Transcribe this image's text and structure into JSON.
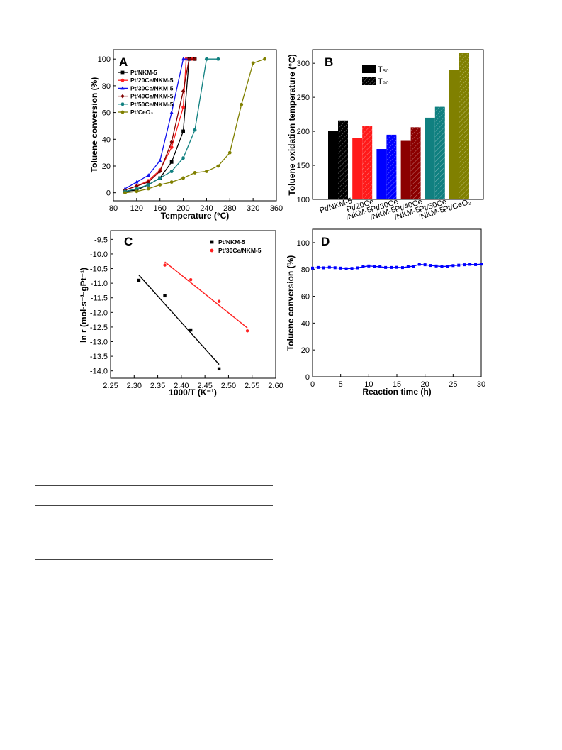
{
  "chart_data": [
    {
      "panel": "A",
      "type": "line",
      "xlabel": "Temperature (°C)",
      "ylabel": "Toluene conversion (%)",
      "xlim": [
        80,
        360
      ],
      "ylim": [
        -6,
        107
      ],
      "xticks": [
        "80",
        "120",
        "160",
        "200",
        "240",
        "280",
        "320",
        "360"
      ],
      "yticks": [
        "0",
        "20",
        "40",
        "60",
        "80",
        "100"
      ],
      "legend_position": "left",
      "series": [
        {
          "name": "Pt/NKM-5",
          "color": "#000000",
          "marker": "square",
          "x": [
            100,
            120,
            140,
            160,
            180,
            200,
            210,
            220
          ],
          "y": [
            1,
            2,
            6,
            11,
            23,
            46,
            100,
            100
          ]
        },
        {
          "name": "Pt/20Ce/NKM-5",
          "color": "#ff2020",
          "marker": "circle",
          "x": [
            100,
            120,
            140,
            160,
            180,
            200,
            205,
            215
          ],
          "y": [
            2,
            5,
            9,
            17,
            34,
            64,
            100,
            100
          ]
        },
        {
          "name": "Pt/30Ce/NKM-5",
          "color": "#1010ee",
          "marker": "triangle",
          "x": [
            100,
            120,
            140,
            160,
            180,
            200,
            210
          ],
          "y": [
            3,
            8,
            13,
            24,
            60,
            100,
            100
          ]
        },
        {
          "name": "Pt/40Ce/NKM-5",
          "color": "#800000",
          "marker": "diamond",
          "x": [
            100,
            120,
            140,
            160,
            180,
            200,
            210,
            220
          ],
          "y": [
            2,
            5,
            8,
            16,
            38,
            76,
            100,
            100
          ]
        },
        {
          "name": "Pt/50Ce/NKM-5",
          "color": "#108080",
          "marker": "hexagon",
          "x": [
            100,
            120,
            140,
            160,
            180,
            200,
            220,
            240,
            260
          ],
          "y": [
            1,
            3,
            6,
            11,
            16,
            26,
            47,
            100,
            100
          ]
        },
        {
          "name": "Pt/CeO₂",
          "color": "#808000",
          "marker": "circle",
          "x": [
            100,
            120,
            140,
            160,
            180,
            200,
            220,
            240,
            260,
            280,
            300,
            320,
            340
          ],
          "y": [
            0,
            1,
            3,
            6,
            8,
            11,
            15,
            16,
            20,
            30,
            66,
            97,
            100
          ]
        }
      ]
    },
    {
      "panel": "B",
      "type": "bar",
      "ylabel": "Toluene oxidation temperature (°C)",
      "ylim": [
        100,
        320
      ],
      "yticks": [
        "100",
        "150",
        "200",
        "250",
        "300"
      ],
      "categories": [
        "Pt/NKM-5",
        "Pt/20Ce /NKM-5",
        "Pt/30Ce /NKM-5",
        "Pt/40Ce /NKM-5",
        "Pt/50Ce /NKM-5",
        "Pt/CeO₂"
      ],
      "category_lines": [
        [
          "Pt/NKM-5"
        ],
        [
          "Pt/20Ce",
          "/NKM-5"
        ],
        [
          "Pt/30Ce",
          "/NKM-5"
        ],
        [
          "Pt/40Ce",
          "/NKM-5"
        ],
        [
          "Pt/50Ce",
          "/NKM-5"
        ],
        [
          "Pt/CeO₂"
        ]
      ],
      "colors": [
        "#000000",
        "#ff1a1a",
        "#0000ff",
        "#8b0000",
        "#108080",
        "#808000"
      ],
      "series": [
        {
          "name": "T₅₀",
          "pattern": "solid",
          "values": [
            201,
            190,
            174,
            186,
            220,
            290
          ]
        },
        {
          "name": "T₉₀",
          "pattern": "hatched",
          "values": [
            216,
            208,
            195,
            206,
            236,
            315
          ]
        }
      ],
      "legend_position": "top-left"
    },
    {
      "panel": "C",
      "type": "scatter",
      "xlabel": "1000/T (K⁻¹)",
      "ylabel": "ln r (mol·s⁻¹·gPt⁻¹)",
      "xlim": [
        2.25,
        2.6
      ],
      "ylim": [
        -14.25,
        -9.2
      ],
      "xticks": [
        "2.25",
        "2.30",
        "2.35",
        "2.40",
        "2.45",
        "2.50",
        "2.55",
        "2.60"
      ],
      "yticks": [
        "-9.5",
        "-10.0",
        "-10.5",
        "-11.0",
        "-11.5",
        "-12.0",
        "-12.5",
        "-13.0",
        "-13.5",
        "-14.0"
      ],
      "legend_position": "top-right",
      "series": [
        {
          "name": "Pt/NKM-5",
          "color": "#000000",
          "marker": "square",
          "x": [
            2.31,
            2.365,
            2.42,
            2.48
          ],
          "y": [
            -10.9,
            -11.43,
            -12.6,
            -13.93
          ],
          "fit": [
            [
              2.31,
              -10.72
            ],
            [
              2.48,
              -13.78
            ]
          ]
        },
        {
          "name": "Pt/30Ce/NKM-5",
          "color": "#ff2020",
          "marker": "circle",
          "x": [
            2.365,
            2.42,
            2.48,
            2.54
          ],
          "y": [
            -10.38,
            -10.88,
            -11.62,
            -12.63
          ],
          "fit": [
            [
              2.365,
              -10.27
            ],
            [
              2.54,
              -12.53
            ]
          ]
        }
      ]
    },
    {
      "panel": "D",
      "type": "line",
      "xlabel": "Reaction time (h)",
      "ylabel": "Toluene conversion (%)",
      "xlim": [
        0,
        30
      ],
      "ylim": [
        0,
        110
      ],
      "xticks": [
        "0",
        "5",
        "10",
        "15",
        "20",
        "25",
        "30"
      ],
      "yticks": [
        "0",
        "20",
        "40",
        "60",
        "80",
        "100"
      ],
      "series": [
        {
          "color": "#0000ff",
          "marker": "square",
          "x": [
            0,
            1,
            2,
            3,
            4,
            5,
            6,
            7,
            8,
            9,
            10,
            11,
            12,
            13,
            14,
            15,
            16,
            17,
            18,
            19,
            20,
            21,
            22,
            23,
            24,
            25,
            26,
            27,
            28,
            29,
            30
          ],
          "y": [
            81,
            81.5,
            81.2,
            81.6,
            81.3,
            81,
            80.6,
            80.8,
            81.2,
            82,
            82.6,
            82.3,
            82,
            81.5,
            81.5,
            81.6,
            81.4,
            82,
            82.5,
            83.8,
            83.5,
            83,
            82.6,
            82.2,
            82.4,
            82.9,
            83.2,
            83.5,
            83.8,
            83.6,
            84
          ]
        }
      ]
    }
  ]
}
